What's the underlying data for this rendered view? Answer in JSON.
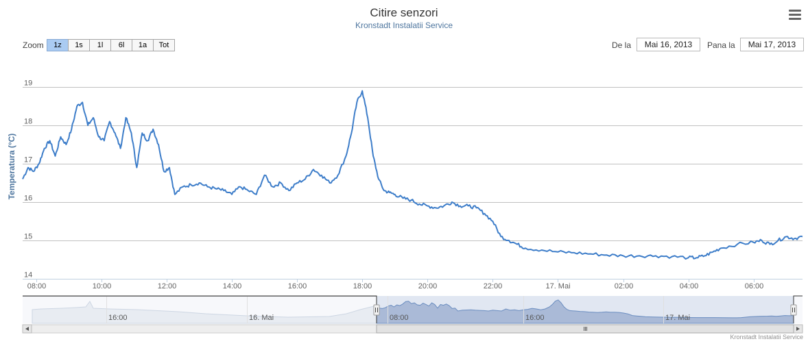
{
  "title": "Citire senzori",
  "subtitle": "Kronstadt Instalatii Service",
  "menu": {
    "icon": "hamburger-menu-icon"
  },
  "range_selector": {
    "zoom_label": "Zoom",
    "buttons": [
      "1z",
      "1s",
      "1l",
      "6l",
      "1a",
      "Tot"
    ],
    "active_button": "1z",
    "from_label": "De la",
    "from_value": "Mai 16, 2013",
    "to_label": "Pana la",
    "to_value": "Mai 17, 2013"
  },
  "navigator": {
    "tick_labels": [
      "16:00",
      "16. Mai",
      "08:00",
      "16:00",
      "17. Mai"
    ],
    "scroll_left_icon": "arrow-left-icon",
    "scroll_right_icon": "arrow-right-icon",
    "scroll_grip_icon": "grip-icon"
  },
  "credits": "Kronstadt Instalatii Service",
  "colors": {
    "series": "#3d7dc9",
    "navigator_fill": "#b7c4db",
    "accent_button": "#aacbf2",
    "grid": "#c0c0c0"
  },
  "chart_data": {
    "type": "line",
    "title": "Citire senzori",
    "subtitle": "Kronstadt Instalatii Service",
    "ylabel": "Temperatura (°C)",
    "xlabel": "",
    "ylim": [
      14,
      19
    ],
    "yticks": [
      "14",
      "15",
      "16",
      "17",
      "18",
      "19"
    ],
    "xlim": [
      "2013-05-16 07:35",
      "2013-05-17 07:30"
    ],
    "xticks": [
      "08:00",
      "10:00",
      "12:00",
      "14:00",
      "16:00",
      "18:00",
      "20:00",
      "22:00",
      "17. Mai",
      "02:00",
      "04:00",
      "06:00"
    ],
    "grid": true,
    "series": [
      {
        "name": "",
        "x": [
          "07:35",
          "07:45",
          "07:55",
          "08:05",
          "08:15",
          "08:25",
          "08:35",
          "08:45",
          "08:55",
          "09:05",
          "09:15",
          "09:25",
          "09:35",
          "09:45",
          "09:55",
          "10:05",
          "10:15",
          "10:25",
          "10:35",
          "10:45",
          "10:55",
          "11:05",
          "11:15",
          "11:25",
          "11:35",
          "11:45",
          "11:55",
          "12:05",
          "12:15",
          "12:30",
          "12:45",
          "13:00",
          "13:15",
          "13:30",
          "13:45",
          "14:00",
          "14:15",
          "14:30",
          "14:45",
          "15:00",
          "15:15",
          "15:30",
          "15:45",
          "16:00",
          "16:15",
          "16:30",
          "16:45",
          "17:00",
          "17:15",
          "17:30",
          "17:40",
          "17:50",
          "18:00",
          "18:10",
          "18:20",
          "18:30",
          "18:40",
          "18:50",
          "19:00",
          "19:15",
          "19:30",
          "19:45",
          "20:00",
          "20:15",
          "20:30",
          "20:45",
          "21:00",
          "21:15",
          "21:30",
          "21:45",
          "22:00",
          "22:15",
          "22:30",
          "22:45",
          "23:00",
          "23:30",
          "00:00",
          "00:30",
          "01:00",
          "01:30",
          "02:00",
          "02:30",
          "03:00",
          "03:30",
          "04:00",
          "04:15",
          "04:30",
          "04:45",
          "05:00",
          "05:30",
          "06:00",
          "06:15",
          "06:30",
          "06:45",
          "07:00",
          "07:15",
          "07:30"
        ],
        "y": [
          16.6,
          16.9,
          16.8,
          17.0,
          17.4,
          17.6,
          17.2,
          17.7,
          17.5,
          17.9,
          18.5,
          18.6,
          18.0,
          18.2,
          17.7,
          17.6,
          18.1,
          17.8,
          17.4,
          18.2,
          17.8,
          16.9,
          17.8,
          17.6,
          17.9,
          17.5,
          16.8,
          16.9,
          16.2,
          16.4,
          16.45,
          16.5,
          16.4,
          16.35,
          16.3,
          16.2,
          16.4,
          16.3,
          16.2,
          16.7,
          16.4,
          16.5,
          16.3,
          16.5,
          16.6,
          16.85,
          16.7,
          16.5,
          16.7,
          17.2,
          17.8,
          18.6,
          18.9,
          18.2,
          17.2,
          16.6,
          16.3,
          16.25,
          16.2,
          16.1,
          16.05,
          15.95,
          15.9,
          15.85,
          15.9,
          16.0,
          15.9,
          15.9,
          15.85,
          15.7,
          15.5,
          15.1,
          15.0,
          14.9,
          14.8,
          14.75,
          14.7,
          14.68,
          14.65,
          14.62,
          14.6,
          14.6,
          14.6,
          14.58,
          14.55,
          14.55,
          14.6,
          14.7,
          14.8,
          14.9,
          14.95,
          15.0,
          14.9,
          15.0,
          15.1,
          15.05,
          15.1
        ]
      }
    ]
  }
}
